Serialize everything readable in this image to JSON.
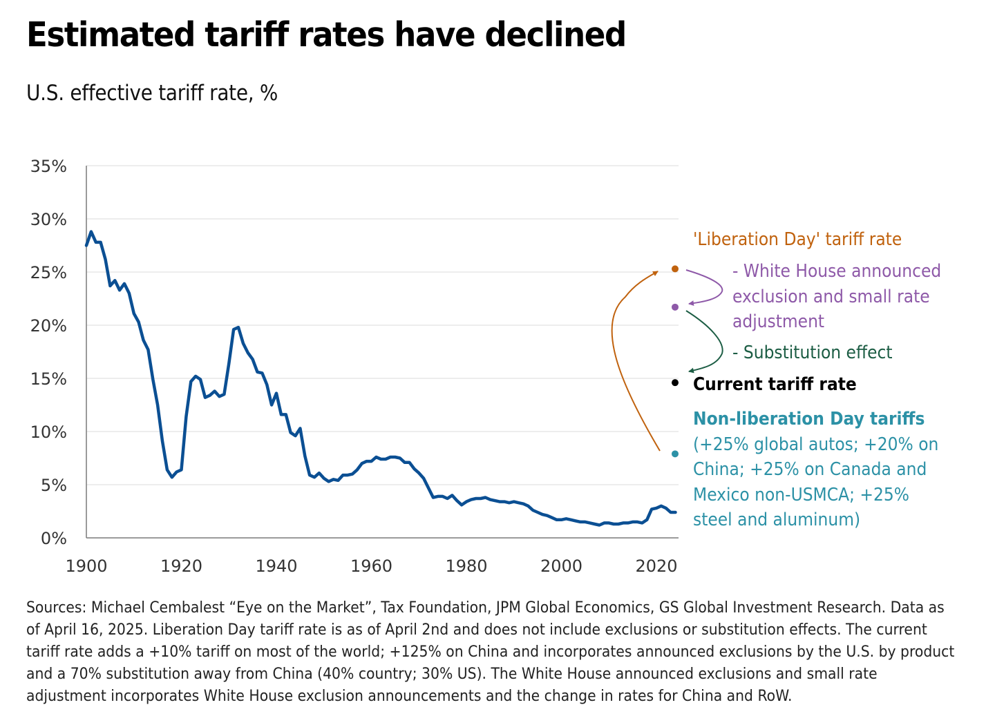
{
  "header": {
    "title": "Estimated tariff rates have declined",
    "subtitle": "U.S. effective tariff rate, %"
  },
  "chart_data": {
    "type": "line",
    "title": "Estimated tariff rates have declined",
    "subtitle": "U.S. effective tariff rate, %",
    "xlabel": "",
    "ylabel": "",
    "xlim": [
      1900,
      2024
    ],
    "ylim": [
      0,
      35
    ],
    "grid": true,
    "x_ticks": [
      "1900",
      "1920",
      "1940",
      "1960",
      "1980",
      "2000",
      "2020"
    ],
    "y_ticks": [
      "0%",
      "5%",
      "10%",
      "15%",
      "20%",
      "25%",
      "30%",
      "35%"
    ],
    "series": [
      {
        "name": "U.S. effective tariff rate",
        "color": "#0b4f93",
        "x": [
          1900,
          1901,
          1902,
          1903,
          1904,
          1905,
          1906,
          1907,
          1908,
          1909,
          1910,
          1911,
          1912,
          1913,
          1914,
          1915,
          1916,
          1917,
          1918,
          1919,
          1920,
          1921,
          1922,
          1923,
          1924,
          1925,
          1926,
          1927,
          1928,
          1929,
          1930,
          1931,
          1932,
          1933,
          1934,
          1935,
          1936,
          1937,
          1938,
          1939,
          1940,
          1941,
          1942,
          1943,
          1944,
          1945,
          1946,
          1947,
          1948,
          1949,
          1950,
          1951,
          1952,
          1953,
          1954,
          1955,
          1956,
          1957,
          1958,
          1959,
          1960,
          1961,
          1962,
          1963,
          1964,
          1965,
          1966,
          1967,
          1968,
          1969,
          1970,
          1971,
          1972,
          1973,
          1974,
          1975,
          1976,
          1977,
          1978,
          1979,
          1980,
          1981,
          1982,
          1983,
          1984,
          1985,
          1986,
          1987,
          1988,
          1989,
          1990,
          1991,
          1992,
          1993,
          1994,
          1995,
          1996,
          1997,
          1998,
          1999,
          2000,
          2001,
          2002,
          2003,
          2004,
          2005,
          2006,
          2007,
          2008,
          2009,
          2010,
          2011,
          2012,
          2013,
          2014,
          2015,
          2016,
          2017,
          2018,
          2019,
          2020,
          2021,
          2022,
          2023,
          2024
        ],
        "y": [
          27.5,
          28.8,
          27.8,
          27.8,
          26.2,
          23.7,
          24.2,
          23.3,
          23.9,
          23.0,
          21.1,
          20.3,
          18.6,
          17.7,
          14.9,
          12.5,
          9.1,
          6.4,
          5.7,
          6.2,
          6.4,
          11.4,
          14.7,
          15.2,
          14.9,
          13.2,
          13.4,
          13.8,
          13.3,
          13.5,
          16.4,
          19.6,
          19.8,
          18.3,
          17.4,
          16.8,
          15.6,
          15.5,
          14.4,
          12.5,
          13.6,
          11.6,
          11.6,
          9.9,
          9.6,
          10.3,
          7.7,
          5.9,
          5.7,
          6.1,
          5.6,
          5.3,
          5.5,
          5.4,
          5.9,
          5.9,
          6.0,
          6.4,
          7.0,
          7.2,
          7.2,
          7.6,
          7.4,
          7.4,
          7.6,
          7.6,
          7.5,
          7.1,
          7.1,
          6.5,
          6.1,
          5.6,
          4.7,
          3.8,
          3.9,
          3.9,
          3.7,
          4.0,
          3.5,
          3.1,
          3.4,
          3.6,
          3.7,
          3.7,
          3.8,
          3.6,
          3.5,
          3.4,
          3.4,
          3.3,
          3.4,
          3.3,
          3.2,
          3.0,
          2.6,
          2.4,
          2.2,
          2.1,
          1.9,
          1.7,
          1.7,
          1.8,
          1.7,
          1.6,
          1.5,
          1.5,
          1.4,
          1.3,
          1.2,
          1.4,
          1.4,
          1.3,
          1.3,
          1.4,
          1.4,
          1.5,
          1.5,
          1.4,
          1.7,
          2.7,
          2.8,
          3.0,
          2.8,
          2.4,
          2.4
        ]
      }
    ],
    "annotations": [
      {
        "id": "liberation",
        "label": "'Liberation Day' tariff rate",
        "value": 25.3,
        "color": "#c0620e"
      },
      {
        "id": "white-house",
        "label": "- White House announced exclusion and small rate adjustment",
        "value": 21.7,
        "color": "#8e59a8"
      },
      {
        "id": "substitution",
        "label": "- Substitution effect",
        "color": "#1c5d44"
      },
      {
        "id": "current",
        "label": "Current tariff rate",
        "value": 14.6,
        "color": "#000000"
      },
      {
        "id": "non-liberation",
        "label": "Non-liberation Day tariffs",
        "detail": "(+25% global autos; +20% on China; +25% on Canada and Mexico non-USMCA; +25% steel and aluminum)",
        "value": 7.9,
        "color": "#2c91a6"
      }
    ]
  },
  "annotations": {
    "liberation": "'Liberation Day' tariff rate",
    "white_house": [
      "- White House announced",
      "exclusion and small rate",
      "adjustment"
    ],
    "substitution": "- Substitution effect",
    "current": "Current tariff rate",
    "non_liberation_head": "Non-liberation Day tariffs",
    "non_liberation_lines": [
      "(+25% global autos; +20% on",
      "China; +25% on Canada and",
      "Mexico non-USMCA; +25%",
      "steel and aluminum)"
    ]
  },
  "footnote": {
    "lines": [
      "Sources: Michael Cembalest “Eye on the Market”, Tax Foundation, JPM Global Economics, GS Global Investment Research. Data as",
      "of April 16, 2025. Liberation Day tariff rate is as of April 2nd and does not include exclusions or substitution effects. The current",
      "tariff rate adds a +10% tariff on most of the world; +125% on China and incorporates announced exclusions by the U.S. by product",
      "and a 70% substitution away from China (40% country; 30% US). The White House announced exclusions and small rate",
      "adjustment incorporates White House exclusion announcements and the change in rates for China and RoW."
    ]
  }
}
